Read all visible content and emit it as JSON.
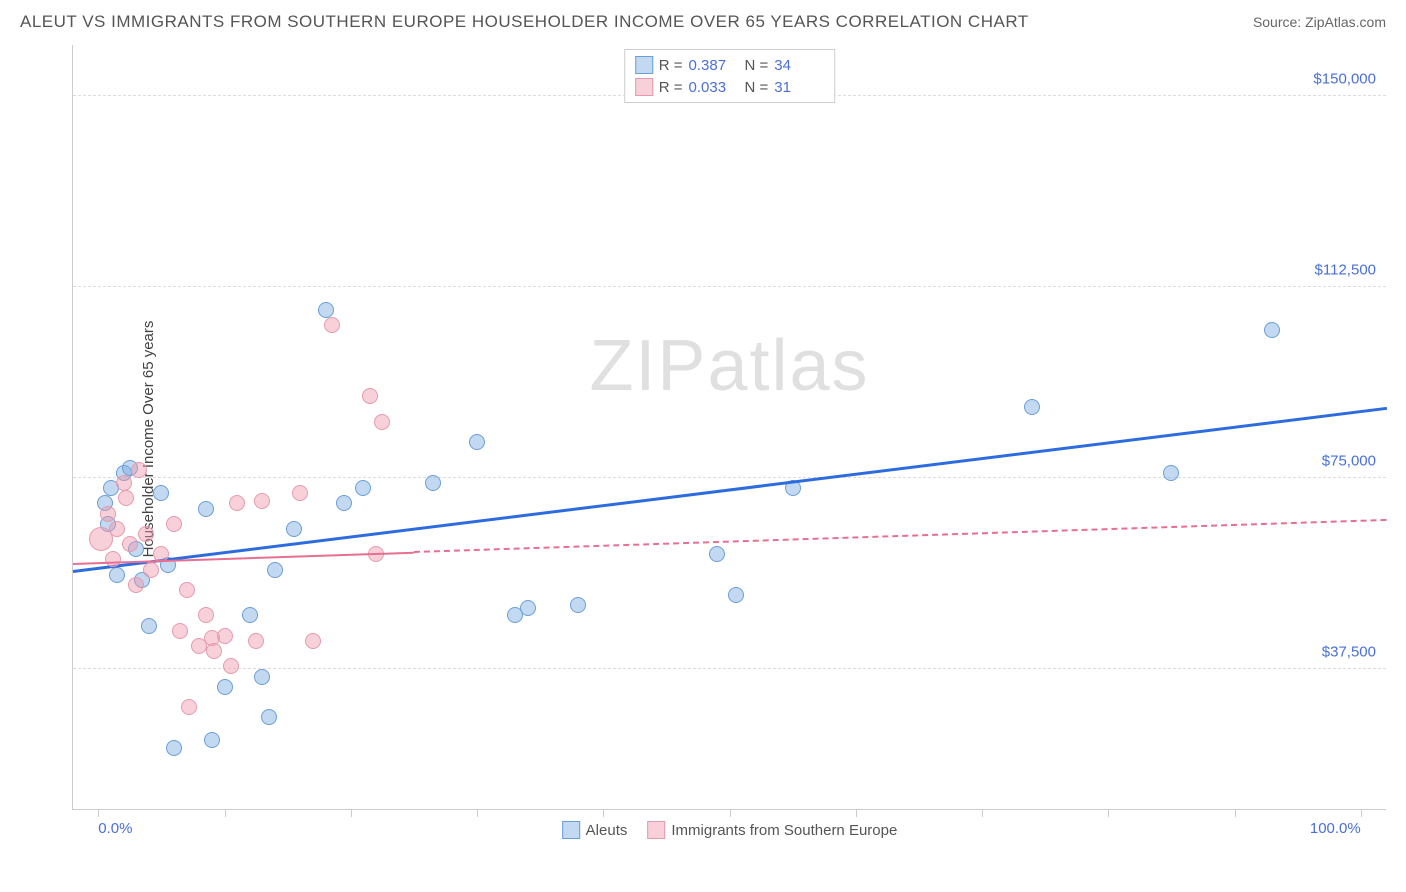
{
  "header": {
    "title": "ALEUT VS IMMIGRANTS FROM SOUTHERN EUROPE HOUSEHOLDER INCOME OVER 65 YEARS CORRELATION CHART",
    "source": "Source: ZipAtlas.com"
  },
  "chart": {
    "type": "scatter",
    "y_axis_label": "Householder Income Over 65 years",
    "watermark": "ZIPatlas",
    "x_range": [
      -2,
      102
    ],
    "y_range": [
      10000,
      160000
    ],
    "y_gridlines": [
      37500,
      75000,
      112500,
      150000
    ],
    "y_tick_labels": [
      "$37,500",
      "$75,000",
      "$112,500",
      "$150,000"
    ],
    "x_ticks_pct": [
      0,
      10,
      20,
      30,
      40,
      50,
      60,
      70,
      80,
      90,
      100
    ],
    "x_min_label": "0.0%",
    "x_max_label": "100.0%",
    "colors": {
      "blue_fill": "rgba(120,170,225,0.45)",
      "blue_stroke": "#6b9ed6",
      "pink_fill": "rgba(240,150,170,0.45)",
      "pink_stroke": "#e59aae",
      "blue_line": "#2d6cdf",
      "pink_line": "#e86f92",
      "grid": "#dcdcdc",
      "axis": "#cccccc",
      "text": "#555555",
      "value_text": "#4a6fd8"
    },
    "point_radius": 8,
    "series": [
      {
        "name": "Aleuts",
        "color_key": "blue",
        "R": "0.387",
        "N": "34",
        "trend": {
          "x1": -2,
          "y1": 57000,
          "x2": 102,
          "y2": 89000,
          "solid_until_x": 102
        },
        "points": [
          {
            "x": 0.5,
            "y": 70000
          },
          {
            "x": 0.8,
            "y": 66000
          },
          {
            "x": 1.0,
            "y": 73000
          },
          {
            "x": 1.5,
            "y": 56000
          },
          {
            "x": 2.0,
            "y": 76000
          },
          {
            "x": 2.5,
            "y": 77000
          },
          {
            "x": 3.0,
            "y": 61000
          },
          {
            "x": 3.5,
            "y": 55000
          },
          {
            "x": 4.0,
            "y": 46000
          },
          {
            "x": 5.0,
            "y": 72000
          },
          {
            "x": 5.5,
            "y": 58000
          },
          {
            "x": 6.0,
            "y": 22000
          },
          {
            "x": 8.5,
            "y": 69000
          },
          {
            "x": 9.0,
            "y": 23500
          },
          {
            "x": 10.0,
            "y": 34000
          },
          {
            "x": 12.0,
            "y": 48000
          },
          {
            "x": 13.0,
            "y": 36000
          },
          {
            "x": 13.5,
            "y": 28000
          },
          {
            "x": 14.0,
            "y": 57000
          },
          {
            "x": 15.5,
            "y": 65000
          },
          {
            "x": 18.0,
            "y": 108000
          },
          {
            "x": 19.5,
            "y": 70000
          },
          {
            "x": 21.0,
            "y": 73000
          },
          {
            "x": 26.5,
            "y": 74000
          },
          {
            "x": 30.0,
            "y": 82000
          },
          {
            "x": 33.0,
            "y": 48000
          },
          {
            "x": 34.0,
            "y": 49500
          },
          {
            "x": 38.0,
            "y": 50000
          },
          {
            "x": 49.0,
            "y": 60000
          },
          {
            "x": 50.5,
            "y": 52000
          },
          {
            "x": 55.0,
            "y": 73000
          },
          {
            "x": 74.0,
            "y": 89000
          },
          {
            "x": 85.0,
            "y": 76000
          },
          {
            "x": 93.0,
            "y": 104000
          }
        ]
      },
      {
        "name": "Immigrants from Southern Europe",
        "color_key": "pink",
        "R": "0.033",
        "N": "31",
        "trend": {
          "x1": -2,
          "y1": 58500,
          "x2": 102,
          "y2": 67000,
          "solid_until_x": 25
        },
        "points": [
          {
            "x": 0.2,
            "y": 63000,
            "r": 12
          },
          {
            "x": 0.8,
            "y": 68000
          },
          {
            "x": 1.2,
            "y": 59000
          },
          {
            "x": 1.5,
            "y": 65000
          },
          {
            "x": 2.0,
            "y": 74000
          },
          {
            "x": 2.2,
            "y": 71000
          },
          {
            "x": 2.5,
            "y": 62000
          },
          {
            "x": 3.0,
            "y": 54000
          },
          {
            "x": 3.2,
            "y": 76500
          },
          {
            "x": 3.8,
            "y": 64000
          },
          {
            "x": 4.2,
            "y": 57000
          },
          {
            "x": 5.0,
            "y": 60000
          },
          {
            "x": 6.0,
            "y": 66000
          },
          {
            "x": 6.5,
            "y": 45000
          },
          {
            "x": 7.0,
            "y": 53000
          },
          {
            "x": 7.2,
            "y": 30000
          },
          {
            "x": 8.0,
            "y": 42000
          },
          {
            "x": 8.5,
            "y": 48000
          },
          {
            "x": 9.0,
            "y": 43500
          },
          {
            "x": 9.2,
            "y": 41000
          },
          {
            "x": 10.0,
            "y": 44000
          },
          {
            "x": 10.5,
            "y": 38000
          },
          {
            "x": 11.0,
            "y": 70000
          },
          {
            "x": 12.5,
            "y": 43000
          },
          {
            "x": 13.0,
            "y": 70500
          },
          {
            "x": 16.0,
            "y": 72000
          },
          {
            "x": 17.0,
            "y": 43000
          },
          {
            "x": 18.5,
            "y": 105000
          },
          {
            "x": 21.5,
            "y": 91000
          },
          {
            "x": 22.0,
            "y": 60000
          },
          {
            "x": 22.5,
            "y": 86000
          }
        ]
      }
    ]
  }
}
